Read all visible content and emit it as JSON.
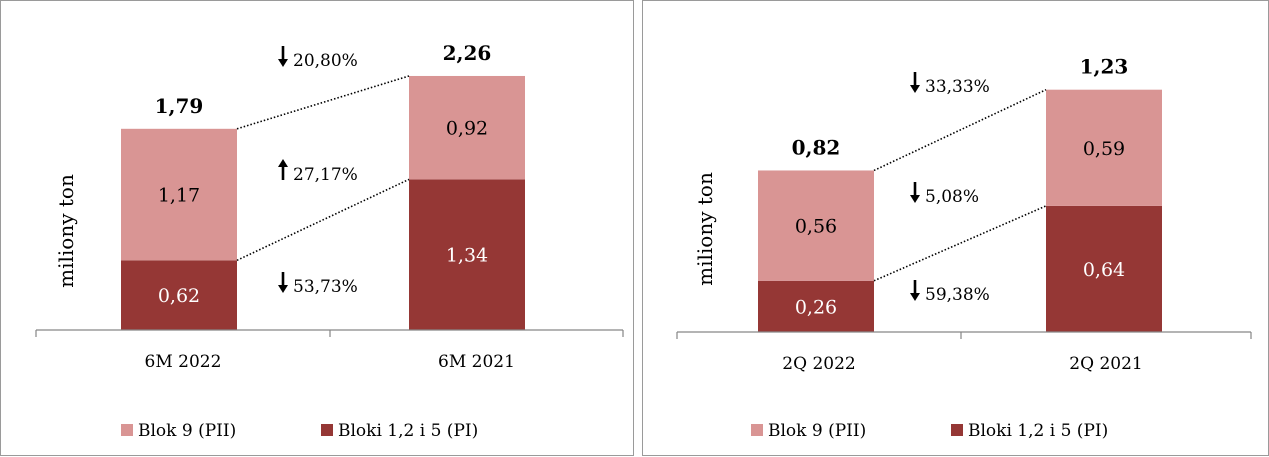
{
  "colors": {
    "upper": "#d99594",
    "lower": "#953735",
    "axis": "#868686"
  },
  "chart_data": [
    {
      "type": "bar",
      "stacked": true,
      "ylabel": "miliony ton",
      "categories": [
        "6M 2022",
        "6M 2021"
      ],
      "series": [
        {
          "name": "Bloki 1,2 i 5 (PI)",
          "values": [
            0.62,
            1.34
          ],
          "labels": [
            "0,62",
            "1,34"
          ]
        },
        {
          "name": "Blok 9 (PII)",
          "values": [
            1.17,
            0.92
          ],
          "labels": [
            "1,17",
            "0,92"
          ]
        }
      ],
      "totals": [
        1.79,
        2.26
      ],
      "total_labels": [
        "1,79",
        "2,26"
      ],
      "ylim": [
        0,
        2.4
      ],
      "grid": false,
      "legend": "bottom",
      "legend_order": [
        "Blok 9 (PII)",
        "Bloki 1,2 i 5 (PI)"
      ],
      "annotations": [
        {
          "arrow": "down",
          "text": "20,80%",
          "refers_to": "total"
        },
        {
          "arrow": "up",
          "text": "27,17%",
          "refers_to": "Blok 9 (PII)"
        },
        {
          "arrow": "down",
          "text": "53,73%",
          "refers_to": "Bloki 1,2 i 5 (PI)"
        }
      ]
    },
    {
      "type": "bar",
      "stacked": true,
      "ylabel": "miliony ton",
      "categories": [
        "2Q 2022",
        "2Q 2021"
      ],
      "series": [
        {
          "name": "Bloki 1,2 i 5 (PI)",
          "values": [
            0.26,
            0.64
          ],
          "labels": [
            "0,26",
            "0,64"
          ]
        },
        {
          "name": "Blok 9 (PII)",
          "values": [
            0.56,
            0.59
          ],
          "labels": [
            "0,56",
            "0,59"
          ]
        }
      ],
      "totals": [
        0.82,
        1.23
      ],
      "total_labels": [
        "0,82",
        "1,23"
      ],
      "ylim": [
        0,
        1.3
      ],
      "grid": false,
      "legend": "bottom",
      "legend_order": [
        "Blok 9 (PII)",
        "Bloki 1,2 i 5 (PI)"
      ],
      "annotations": [
        {
          "arrow": "down",
          "text": "33,33%",
          "refers_to": "total"
        },
        {
          "arrow": "down",
          "text": "5,08%",
          "refers_to": "Blok 9 (PII)"
        },
        {
          "arrow": "down",
          "text": "59,38%",
          "refers_to": "Bloki 1,2 i 5 (PI)"
        }
      ]
    }
  ]
}
